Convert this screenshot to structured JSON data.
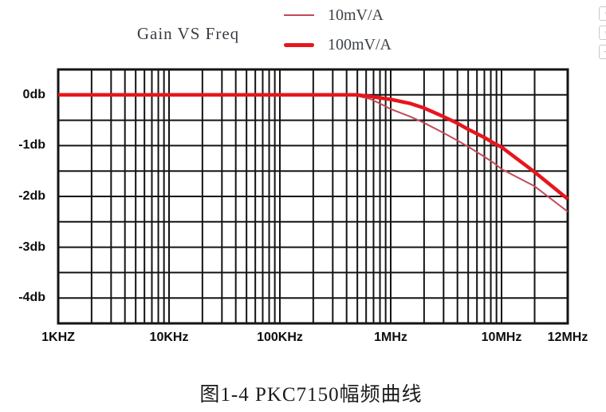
{
  "chart_data": {
    "type": "line",
    "title": "Gain VS Freq",
    "x_axis": {
      "scale": "log",
      "unit": "Hz",
      "min": 1000,
      "max": 12000000,
      "ticks": [
        {
          "value": 1000,
          "label": "1KHZ"
        },
        {
          "value": 10000,
          "label": "10KHz"
        },
        {
          "value": 100000,
          "label": "100KHz"
        },
        {
          "value": 1000000,
          "label": "1MHz"
        },
        {
          "value": 10000000,
          "label": "10MHz"
        },
        {
          "value": 12000000,
          "label": "12MHz"
        }
      ]
    },
    "y_axis": {
      "unit": "db",
      "min": -4.5,
      "max": 0.5,
      "grid_step": 0.5,
      "ticks": [
        {
          "value": 0,
          "label": "0db"
        },
        {
          "value": -1,
          "label": "-1db"
        },
        {
          "value": -2,
          "label": "-2db"
        },
        {
          "value": -3,
          "label": "-3db"
        },
        {
          "value": -4,
          "label": "-4db"
        }
      ]
    },
    "grid": true,
    "legend_position": "top-center",
    "series": [
      {
        "name": "10mV/A",
        "style": "thin",
        "color": "#c24b58",
        "line_width": 2,
        "points": [
          [
            1000,
            0
          ],
          [
            200000,
            0
          ],
          [
            400000,
            0
          ],
          [
            500000,
            -0.02
          ],
          [
            650000,
            -0.08
          ],
          [
            800000,
            -0.17
          ],
          [
            1000000,
            -0.28
          ],
          [
            1500000,
            -0.43
          ],
          [
            2000000,
            -0.55
          ],
          [
            3000000,
            -0.75
          ],
          [
            4000000,
            -0.9
          ],
          [
            5000000,
            -1.02
          ],
          [
            7000000,
            -1.22
          ],
          [
            8500000,
            -1.34
          ],
          [
            10000000,
            -1.46
          ],
          [
            11000000,
            -1.8
          ],
          [
            12000000,
            -2.3
          ]
        ]
      },
      {
        "name": "100mV/A",
        "style": "thick",
        "color": "#e8151c",
        "line_width": 4.5,
        "points": [
          [
            1000,
            0
          ],
          [
            300000,
            0
          ],
          [
            500000,
            0
          ],
          [
            650000,
            -0.03
          ],
          [
            800000,
            -0.06
          ],
          [
            1000000,
            -0.09
          ],
          [
            1500000,
            -0.17
          ],
          [
            2000000,
            -0.26
          ],
          [
            3000000,
            -0.43
          ],
          [
            4000000,
            -0.56
          ],
          [
            5000000,
            -0.68
          ],
          [
            7000000,
            -0.84
          ],
          [
            8500000,
            -0.95
          ],
          [
            10000000,
            -1.03
          ],
          [
            11000000,
            -1.52
          ],
          [
            12000000,
            -2.05
          ]
        ]
      }
    ],
    "colors": {
      "grid": "#141414",
      "border": "#141414",
      "background": "#ffffff"
    }
  },
  "caption": {
    "text": "图1-4 PKC7150幅频曲线"
  },
  "edge_buttons": [
    {
      "icon": "circle-icon",
      "glyph": "◦"
    },
    {
      "icon": "square-icon",
      "glyph": "▫"
    },
    {
      "icon": "dash-icon",
      "glyph": "–"
    }
  ]
}
